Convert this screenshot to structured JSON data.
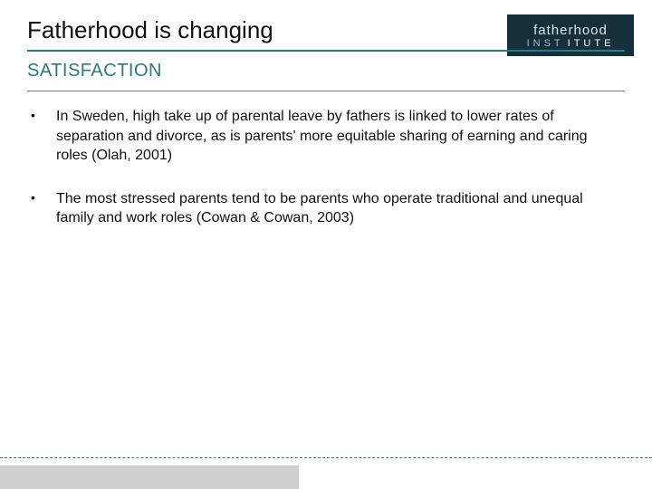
{
  "header": {
    "title": "Fatherhood is changing",
    "subtitle": "SATISFACTION",
    "title_color": "#111111",
    "accent_color": "#2a7a84",
    "title_fontsize": 26,
    "subtitle_fontsize": 20
  },
  "logo": {
    "line1": "fatherhood",
    "line2_light": "INST",
    "line2_rest": "ITUTE",
    "background_color": "#15303a",
    "text_color": "#e8f0f2"
  },
  "bullets": [
    "In Sweden, high take up of parental leave by fathers is linked to lower rates of separation and divorce, as is parents' more equitable sharing of earning and caring roles (Olah, 2001)",
    "The most stressed parents tend to be parents who operate traditional and unequal family and work roles (Cowan & Cowan, 2003)"
  ],
  "styling": {
    "body_fontsize": 16,
    "body_color": "#111111",
    "background_color": "#ffffff",
    "footer_dash_color": "#2a7a84",
    "footer_bar_color": "#cfcfcf",
    "slide_width": 720,
    "slide_height": 540
  }
}
